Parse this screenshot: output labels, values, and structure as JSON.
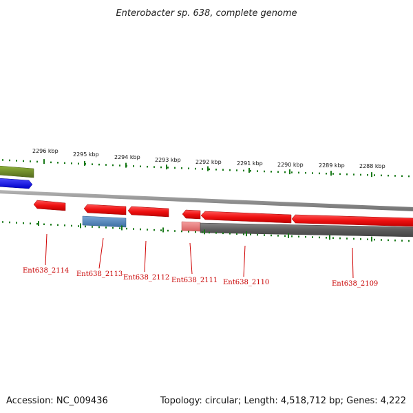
{
  "title": "Enterobacter sp. 638, complete genome",
  "footer": {
    "accession": "Accession: NC_009436",
    "summary": "Topology: circular; Length: 4,518,712 bp; Genes: 4,222"
  },
  "ruler": {
    "labels": [
      "2296 kbp",
      "2295 kbp",
      "2294 kbp",
      "2293 kbp",
      "2292 kbp",
      "2291 kbp",
      "2290 kbp",
      "2289 kbp",
      "2288 kbp"
    ]
  },
  "genes": [
    {
      "id": "Ent638_2114",
      "label": "Ent638_2114",
      "color": "#ee1111"
    },
    {
      "id": "Ent638_2113",
      "label": "Ent638_2113",
      "color": "#ee1111"
    },
    {
      "id": "Ent638_2112",
      "label": "Ent638_2112",
      "color": "#ee1111"
    },
    {
      "id": "Ent638_2111",
      "label": "Ent638_2111",
      "color": "#ee1111"
    },
    {
      "id": "Ent638_2110",
      "label": "Ent638_2110",
      "color": "#ee1111"
    },
    {
      "id": "Ent638_2109",
      "label": "Ent638_2109",
      "color": "#ee1111"
    }
  ],
  "colors": {
    "gene_red": "#ee1111",
    "label_red": "#c80000",
    "backbone_gray": "#888888",
    "pseudo_gray": "#666666",
    "feature_blue": "#1a1aee",
    "feature_steelblue": "#4a80b8",
    "feature_olive": "#6b8e23",
    "feature_pink": "#e87b7b",
    "tick_green": "#1a7a1a"
  }
}
